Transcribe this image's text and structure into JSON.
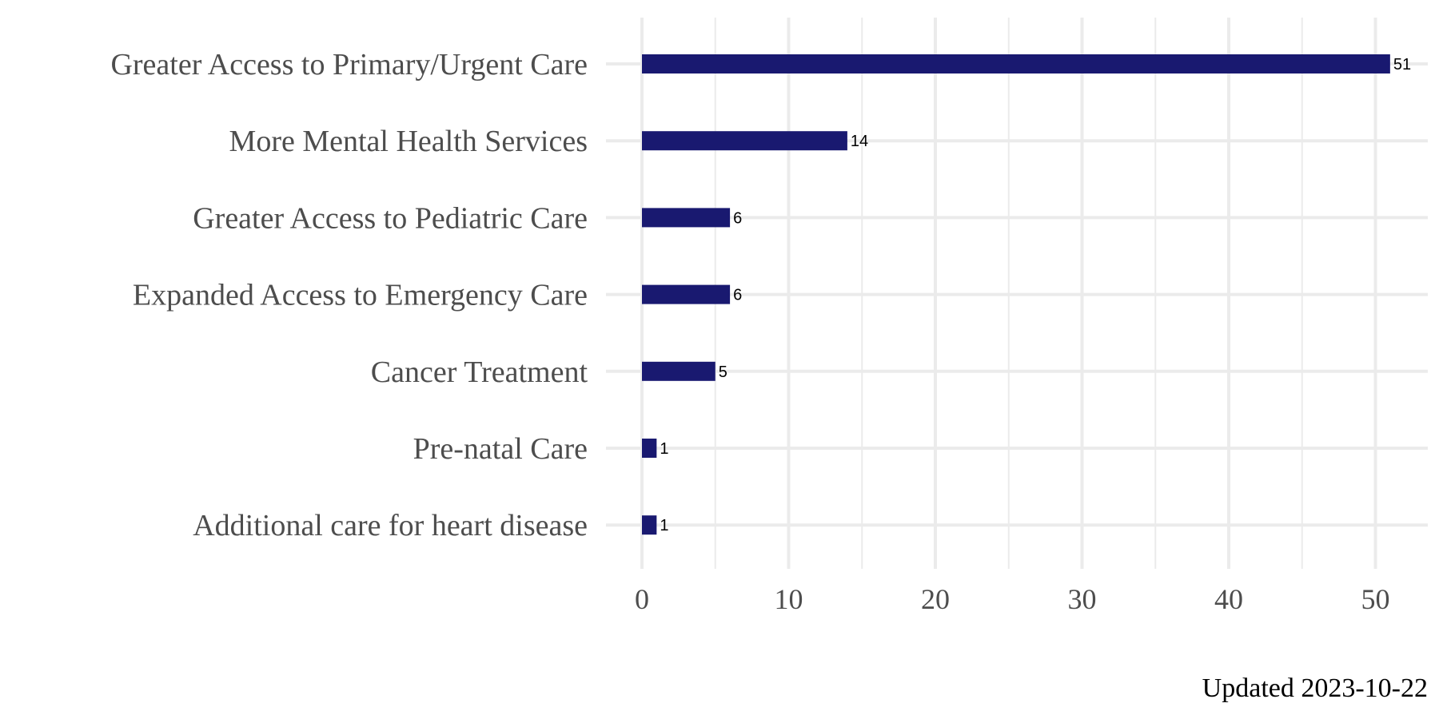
{
  "chart_data": {
    "type": "bar",
    "orientation": "horizontal",
    "categories": [
      "Greater Access to Primary/Urgent Care",
      "More Mental Health Services",
      "Greater Access to Pediatric Care",
      "Expanded Access to Emergency Care",
      "Cancer Treatment",
      "Pre-natal Care",
      "Additional care for heart disease"
    ],
    "values": [
      51,
      14,
      6,
      6,
      5,
      1,
      1
    ],
    "title": "",
    "xlabel": "",
    "ylabel": "",
    "xlim": [
      0,
      53
    ],
    "x_ticks": [
      0,
      10,
      20,
      30,
      40,
      50
    ],
    "grid": true,
    "bar_color": "#191970",
    "caption": "Updated 2023-10-22"
  }
}
